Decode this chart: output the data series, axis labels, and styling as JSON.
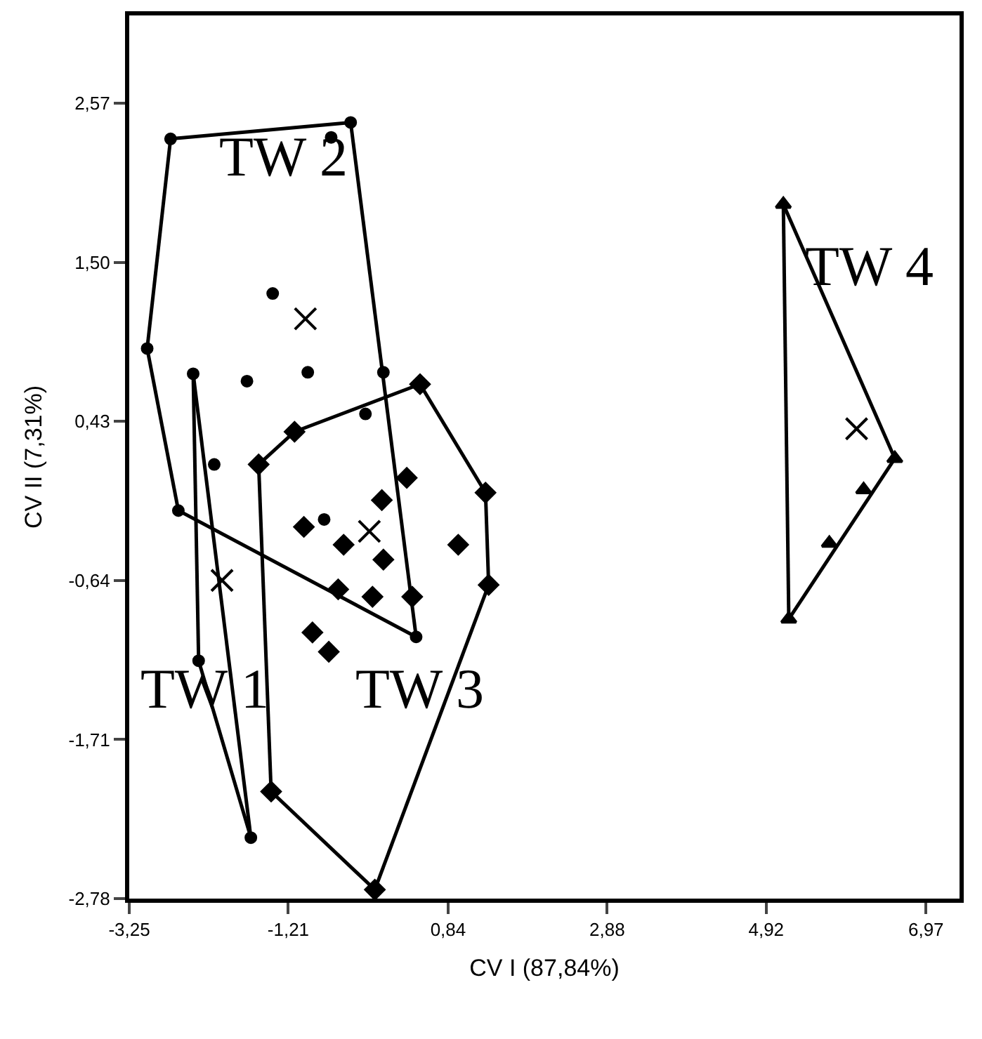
{
  "chart_data": {
    "type": "scatter",
    "xlabel": "CV I (87,84%)",
    "ylabel": "CV II (7,31%)",
    "xlim": [
      -3.25,
      7.4
    ],
    "xticks": [
      {
        "value": -3.25,
        "label": "-3,25"
      },
      {
        "value": -1.21,
        "label": "-1,21"
      },
      {
        "value": 0.84,
        "label": "0,84"
      },
      {
        "value": 2.88,
        "label": "2,88"
      },
      {
        "value": 4.92,
        "label": "4,92"
      },
      {
        "value": 6.97,
        "label": "6,97"
      }
    ],
    "ylim": [
      -2.78,
      3.16
    ],
    "yticks": [
      {
        "value": -2.78,
        "label": "-2,78"
      },
      {
        "value": -1.71,
        "label": "-1,71"
      },
      {
        "value": -0.64,
        "label": "-0,64"
      },
      {
        "value": 0.43,
        "label": "0,43"
      },
      {
        "value": 1.5,
        "label": "1,50"
      },
      {
        "value": 2.57,
        "label": "2,57"
      }
    ],
    "series": [
      {
        "type": "line",
        "color": "#000000",
        "marker": "none",
        "x": [
          -2.43,
          -2.36
        ],
        "values": [
          0.75,
          -1.18
        ]
      },
      {
        "type": "line",
        "color": "#000000",
        "marker": "none",
        "x": [
          -2.36,
          -1.69
        ],
        "values": [
          -1.18,
          -2.37
        ]
      },
      {
        "type": "line",
        "color": "#000000",
        "marker": "none",
        "x": [
          -2.43,
          -1.69
        ],
        "values": [
          0.75,
          -2.37
        ]
      },
      {
        "type": "line",
        "color": "#000000",
        "marker": "none",
        "x": [
          -2.72,
          -0.41
        ],
        "values": [
          2.33,
          2.44
        ]
      },
      {
        "type": "line",
        "color": "#000000",
        "marker": "none",
        "x": [
          -0.41,
          0.43
        ],
        "values": [
          2.44,
          -1.02
        ]
      },
      {
        "type": "line",
        "color": "#000000",
        "marker": "none",
        "x": [
          -2.62,
          0.43
        ],
        "values": [
          -0.17,
          -1.02
        ]
      },
      {
        "type": "line",
        "color": "#000000",
        "marker": "none",
        "x": [
          -3.02,
          -2.62
        ],
        "values": [
          0.92,
          -0.17
        ]
      },
      {
        "type": "line",
        "color": "#000000",
        "marker": "none",
        "x": [
          -3.02,
          -2.72
        ],
        "values": [
          0.92,
          2.33
        ]
      },
      {
        "type": "line",
        "color": "#000000",
        "marker": "none",
        "x": [
          -1.59,
          -1.13
        ],
        "values": [
          0.14,
          0.36
        ]
      },
      {
        "type": "line",
        "color": "#000000",
        "marker": "none",
        "x": [
          -1.13,
          0.48
        ],
        "values": [
          0.36,
          0.68
        ]
      },
      {
        "type": "line",
        "color": "#000000",
        "marker": "none",
        "x": [
          0.48,
          1.32
        ],
        "values": [
          0.68,
          -0.05
        ]
      },
      {
        "type": "line",
        "color": "#000000",
        "marker": "none",
        "x": [
          1.32,
          1.36
        ],
        "values": [
          -0.05,
          -0.67
        ]
      },
      {
        "type": "line",
        "color": "#000000",
        "marker": "none",
        "x": [
          -0.1,
          1.36
        ],
        "values": [
          -2.72,
          -0.67
        ]
      },
      {
        "type": "line",
        "color": "#000000",
        "marker": "none",
        "x": [
          -1.43,
          -0.1
        ],
        "values": [
          -2.06,
          -2.72
        ]
      },
      {
        "type": "line",
        "color": "#000000",
        "marker": "none",
        "x": [
          -1.59,
          -1.43
        ],
        "values": [
          0.14,
          -2.06
        ]
      },
      {
        "type": "line",
        "color": "#000000",
        "marker": "none",
        "x": [
          5.14,
          6.57
        ],
        "values": [
          1.89,
          0.18
        ]
      },
      {
        "type": "line",
        "color": "#000000",
        "marker": "none",
        "x": [
          5.21,
          6.57
        ],
        "values": [
          -0.9,
          0.18
        ]
      },
      {
        "type": "line",
        "color": "#000000",
        "marker": "none",
        "x": [
          5.14,
          5.21
        ],
        "values": [
          1.89,
          -0.9
        ]
      },
      {
        "color": "#000000",
        "marker": "circle",
        "x": [
          -2.43,
          -2.36,
          -1.69,
          -2.72,
          0.43,
          0.01,
          -0.22,
          -1.41,
          -1.74,
          -0.96,
          -2.16,
          -0.75,
          -0.66,
          -3.02,
          -2.62,
          -0.41
        ],
        "values": [
          0.75,
          -1.18,
          -2.37,
          2.33,
          -1.02,
          0.76,
          0.48,
          1.29,
          0.7,
          0.76,
          0.14,
          -0.23,
          2.34,
          0.92,
          -0.17,
          2.44
        ]
      },
      {
        "color": "#000000",
        "marker": "diamond",
        "x": [
          -1.59,
          -1.13,
          -0.1,
          -1.43,
          0.31,
          -0.5,
          0.01,
          -0.57,
          0.38,
          0.97,
          -0.69,
          0.48,
          1.32,
          1.36,
          -0.01,
          -1.01,
          -0.13,
          -0.9
        ],
        "values": [
          0.14,
          0.36,
          -2.72,
          -2.06,
          0.05,
          -0.4,
          -0.5,
          -0.7,
          -0.75,
          -0.4,
          -1.12,
          0.68,
          -0.05,
          -0.67,
          -0.1,
          -0.28,
          -0.75,
          -0.99
        ]
      },
      {
        "color": "#000000",
        "marker": "triangle",
        "x": [
          5.14,
          6.57,
          5.21,
          6.17,
          5.73
        ],
        "values": [
          1.89,
          0.18,
          -0.9,
          -0.03,
          -0.39
        ]
      },
      {
        "color": "#000000",
        "marker": "cross",
        "x": [
          -2.06,
          -0.99,
          -0.17,
          6.08
        ],
        "values": [
          -0.64,
          1.12,
          -0.31,
          0.38
        ]
      }
    ],
    "annotations": [
      "TW 2",
      "TW 1",
      "TW 3",
      "TW 4"
    ]
  }
}
